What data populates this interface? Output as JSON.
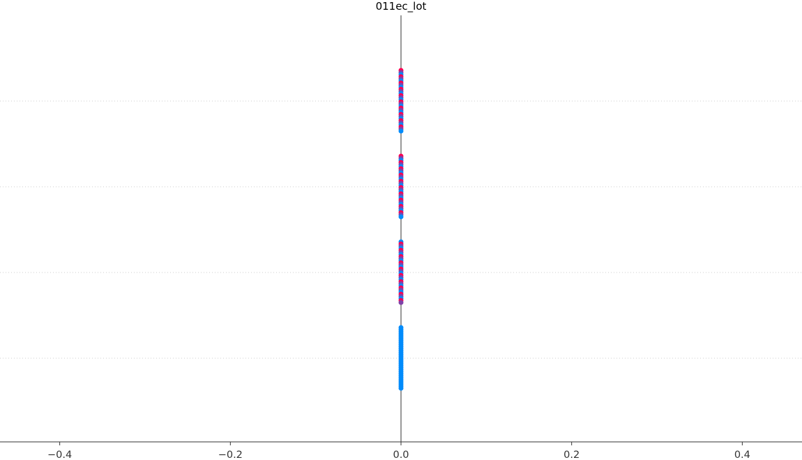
{
  "chart_data": {
    "type": "scatter",
    "title": "011ec_lot",
    "xlabel": "",
    "ylabel": "",
    "xlim": [
      -0.47,
      0.47
    ],
    "x_ticks": [
      -0.4,
      -0.2,
      0.0,
      0.2,
      0.4
    ],
    "x_tick_labels": [
      "−0.4",
      "−0.2",
      "0.0",
      "0.2",
      "0.4"
    ],
    "grid": "horizontal dotted",
    "legend": "none",
    "series": [
      {
        "row": 1,
        "x_min": 0.0,
        "x_max": 0.0,
        "colors": [
          "#ff0052",
          "#008bfb",
          "#7f41a8"
        ]
      },
      {
        "row": 2,
        "x_min": 0.0,
        "x_max": 0.0,
        "colors": [
          "#ff0052",
          "#008bfb",
          "#7f41a8"
        ]
      },
      {
        "row": 3,
        "x_min": 0.0,
        "x_max": 0.0,
        "colors": [
          "#008bfb",
          "#7f41a8",
          "#ff0052"
        ]
      },
      {
        "row": 4,
        "x_min": 0.0,
        "x_max": 0.0,
        "colors": [
          "#008bfb"
        ]
      }
    ],
    "colors": {
      "high": "#ff0052",
      "low": "#008bfb",
      "mid": "#7f41a8",
      "zero_line": "#999999",
      "grid": "#cccccc",
      "axis": "#333333"
    }
  }
}
